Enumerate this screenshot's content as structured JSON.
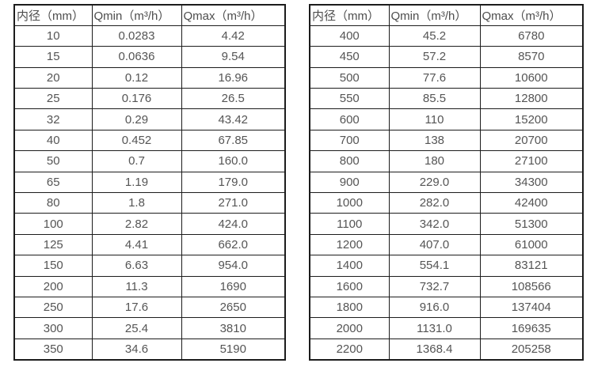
{
  "colors": {
    "background": "#ffffff",
    "border": "#1c1c1c",
    "text": "#555555"
  },
  "tables": [
    {
      "name": "small-diameter-flow-table",
      "headers": [
        "内径（mm）",
        "Qmin（m³/h）",
        "Qmax（m³/h）"
      ],
      "rows": [
        [
          "10",
          "0.0283",
          "4.42"
        ],
        [
          "15",
          "0.0636",
          "9.54"
        ],
        [
          "20",
          "0.12",
          "16.96"
        ],
        [
          "25",
          "0.176",
          "26.5"
        ],
        [
          "32",
          "0.29",
          "43.42"
        ],
        [
          "40",
          "0.452",
          "67.85"
        ],
        [
          "50",
          "0.7",
          "160.0"
        ],
        [
          "65",
          "1.19",
          "179.0"
        ],
        [
          "80",
          "1.8",
          "271.0"
        ],
        [
          "100",
          "2.82",
          "424.0"
        ],
        [
          "125",
          "4.41",
          "662.0"
        ],
        [
          "150",
          "6.63",
          "954.0"
        ],
        [
          "200",
          "11.3",
          "1690"
        ],
        [
          "250",
          "17.6",
          "2650"
        ],
        [
          "300",
          "25.4",
          "3810"
        ],
        [
          "350",
          "34.6",
          "5190"
        ]
      ]
    },
    {
      "name": "large-diameter-flow-table",
      "headers": [
        "内径（mm）",
        "Qmin（m³/h）",
        "Qmax（m³/h）"
      ],
      "rows": [
        [
          "400",
          "45.2",
          "6780"
        ],
        [
          "450",
          "57.2",
          "8570"
        ],
        [
          "500",
          "77.6",
          "10600"
        ],
        [
          "550",
          "85.5",
          "12800"
        ],
        [
          "600",
          "110",
          "15200"
        ],
        [
          "700",
          "138",
          "20700"
        ],
        [
          "800",
          "180",
          "27100"
        ],
        [
          "900",
          "229.0",
          "34300"
        ],
        [
          "1000",
          "282.0",
          "42400"
        ],
        [
          "1100",
          "342.0",
          "51300"
        ],
        [
          "1200",
          "407.0",
          "61000"
        ],
        [
          "1400",
          "554.1",
          "83121"
        ],
        [
          "1600",
          "732.7",
          "108566"
        ],
        [
          "1800",
          "916.0",
          "137404"
        ],
        [
          "2000",
          "1131.0",
          "169635"
        ],
        [
          "2200",
          "1368.4",
          "205258"
        ]
      ]
    }
  ]
}
